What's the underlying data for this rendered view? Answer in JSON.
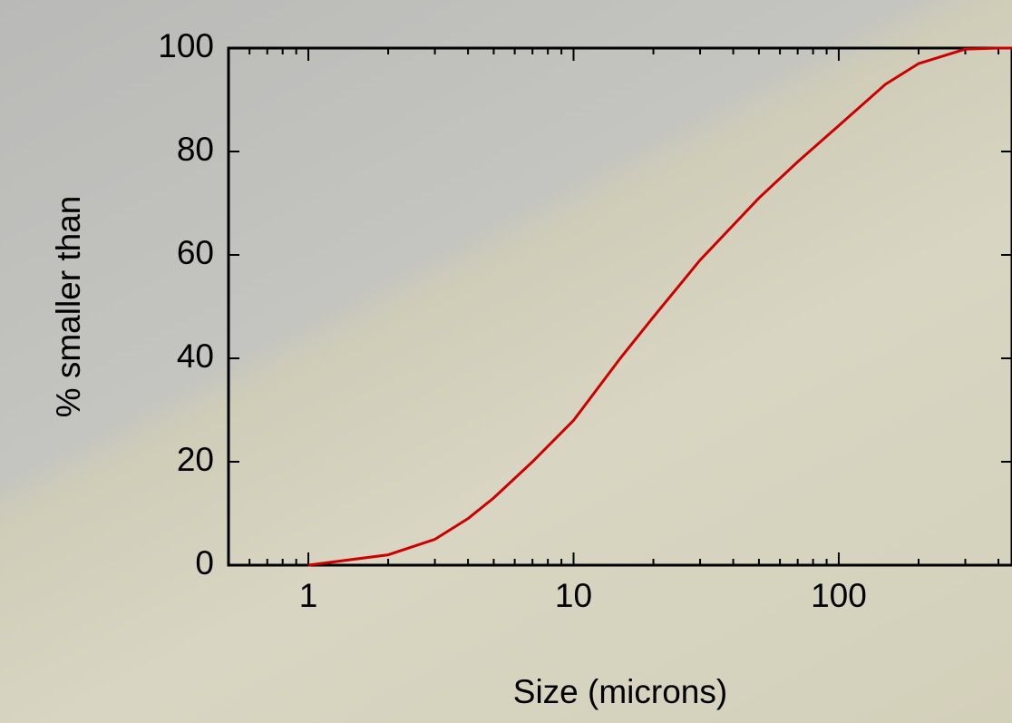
{
  "chart_data": {
    "type": "line",
    "xlabel": "Size (microns)",
    "ylabel": "% smaller than",
    "xscale": "log",
    "x": [
      1,
      2,
      3,
      4,
      5,
      7,
      10,
      15,
      20,
      30,
      50,
      70,
      100,
      150,
      200,
      300,
      400,
      450
    ],
    "series": [
      {
        "color": "#cc0000",
        "values": [
          0,
          2,
          5,
          9,
          13,
          20,
          28,
          40,
          48,
          59,
          71,
          78,
          85,
          93,
          97,
          99.8,
          100,
          100
        ]
      }
    ],
    "xlim": [
      0.5,
      450
    ],
    "xticks": [
      1,
      10,
      100
    ],
    "xminorticks": [
      0.6,
      0.7,
      0.8,
      0.9,
      2,
      3,
      4,
      5,
      6,
      7,
      8,
      9,
      20,
      30,
      40,
      50,
      60,
      70,
      80,
      90,
      200,
      300,
      400
    ],
    "ylim": [
      0,
      100
    ],
    "yticks": [
      0,
      20,
      40,
      60,
      80,
      100
    ],
    "grid": false
  }
}
